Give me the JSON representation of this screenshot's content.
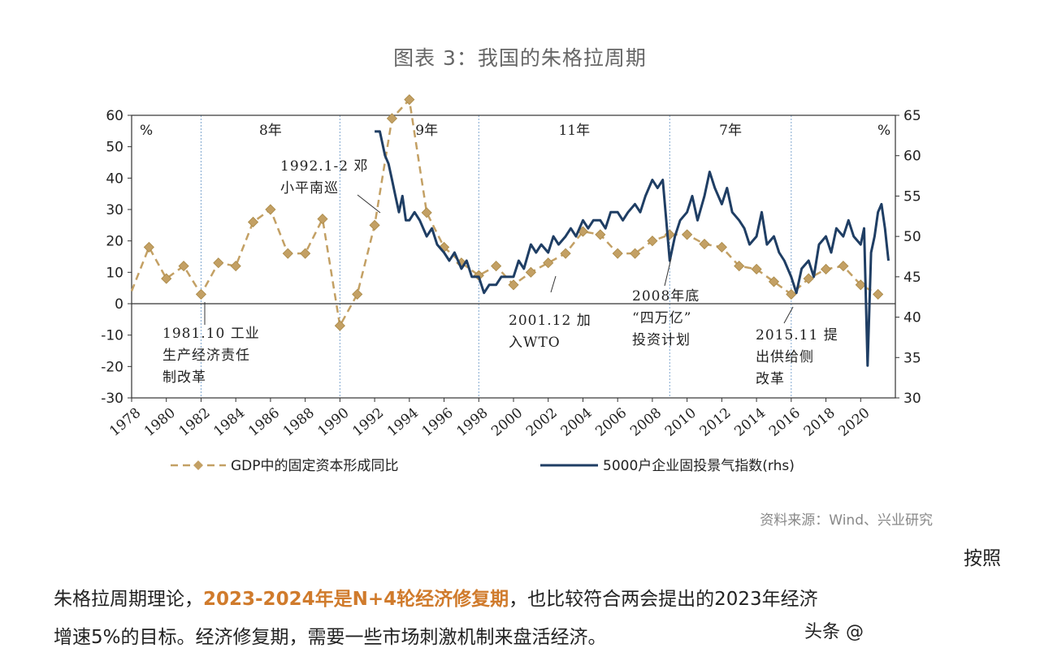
{
  "chart_data": {
    "type": "line",
    "title": "图表 3：我国的朱格拉周期",
    "source": "资料来源：Wind、兴业研究",
    "left_axis": {
      "unit": "%",
      "ylim": [
        -30,
        60
      ],
      "ticks": [
        60,
        50,
        40,
        30,
        20,
        10,
        0,
        -10,
        -20,
        -30
      ]
    },
    "right_axis": {
      "unit": "%",
      "ylim": [
        30,
        65
      ],
      "ticks": [
        65,
        60,
        55,
        50,
        45,
        40,
        35,
        30
      ]
    },
    "x_ticks": [
      "1978",
      "1980",
      "1982",
      "1984",
      "1986",
      "1988",
      "1990",
      "1992",
      "1994",
      "1996",
      "1998",
      "2000",
      "2002",
      "2004",
      "2006",
      "2008",
      "2010",
      "2012",
      "2014",
      "2016",
      "2018",
      "2020"
    ],
    "periods": [
      "8年",
      "9年",
      "11年",
      "7年"
    ],
    "annotations": {
      "a1992": [
        "1992.1-2 邓",
        "小平南巡"
      ],
      "a1981": [
        "1981.10 工业",
        "生产经济责任",
        "制改革"
      ],
      "a2001": [
        "2001.12 加",
        "入WTO"
      ],
      "a2008": [
        "2008年底",
        "“四万亿”",
        "投资计划"
      ],
      "a2015": [
        "2015.11 提",
        "出供给侧",
        "改革"
      ]
    },
    "series": [
      {
        "name": "GDP中的固定资本形成同比",
        "axis": "left",
        "color": "#c3a064",
        "x": [
          1978,
          1979,
          1980,
          1981,
          1982,
          1983,
          1984,
          1985,
          1986,
          1987,
          1988,
          1989,
          1990,
          1991,
          1992,
          1993,
          1994,
          1995,
          1996,
          1997,
          1998,
          1999,
          2000,
          2001,
          2002,
          2003,
          2004,
          2005,
          2006,
          2007,
          2008,
          2009,
          2010,
          2011,
          2012,
          2013,
          2014,
          2015,
          2016,
          2017,
          2018,
          2019,
          2020,
          2021
        ],
        "values": [
          4,
          18,
          8,
          12,
          3,
          13,
          12,
          26,
          30,
          16,
          16,
          27,
          -7,
          3,
          25,
          59,
          65,
          29,
          18,
          13,
          9,
          12,
          6,
          10,
          13,
          16,
          23,
          22,
          16,
          16,
          20,
          22,
          22,
          19,
          18,
          12,
          11,
          7,
          3,
          8,
          11,
          12,
          6,
          3
        ]
      },
      {
        "name": "5000户企业固投景气指数(rhs)",
        "axis": "right",
        "color": "#1f3e64",
        "x": [
          1992.0,
          1992.3,
          1992.6,
          1992.8,
          1993.0,
          1993.2,
          1993.4,
          1993.6,
          1993.8,
          1994.0,
          1994.3,
          1994.6,
          1995.0,
          1995.3,
          1995.6,
          1996.0,
          1996.3,
          1996.6,
          1997.0,
          1997.3,
          1997.6,
          1998.0,
          1998.3,
          1998.6,
          1999.0,
          1999.3,
          1999.6,
          2000.0,
          2000.3,
          2000.6,
          2001.0,
          2001.3,
          2001.6,
          2002.0,
          2002.3,
          2002.6,
          2003.0,
          2003.3,
          2003.6,
          2004.0,
          2004.3,
          2004.6,
          2005.0,
          2005.3,
          2005.6,
          2006.0,
          2006.3,
          2006.6,
          2007.0,
          2007.3,
          2007.6,
          2008.0,
          2008.3,
          2008.6,
          2009.0,
          2009.3,
          2009.6,
          2010.0,
          2010.3,
          2010.6,
          2011.0,
          2011.3,
          2011.6,
          2012.0,
          2012.3,
          2012.6,
          2013.0,
          2013.3,
          2013.6,
          2014.0,
          2014.3,
          2014.6,
          2015.0,
          2015.3,
          2015.6,
          2016.0,
          2016.3,
          2016.6,
          2017.0,
          2017.3,
          2017.6,
          2018.0,
          2018.3,
          2018.6,
          2019.0,
          2019.3,
          2019.6,
          2020.0,
          2020.2,
          2020.4,
          2020.6,
          2020.8,
          2021.0,
          2021.2,
          2021.4,
          2021.6
        ],
        "values": [
          63,
          63,
          60,
          59,
          57,
          55,
          53,
          55,
          52,
          52,
          53,
          52,
          50,
          51,
          49,
          48,
          47,
          48,
          46,
          47,
          45,
          45,
          43,
          44,
          44,
          45,
          45,
          45,
          47,
          46,
          49,
          48,
          49,
          48,
          50,
          49,
          50,
          51,
          50,
          52,
          51,
          52,
          52,
          51,
          53,
          53,
          52,
          53,
          54,
          53,
          55,
          57,
          56,
          57,
          47,
          50,
          52,
          53,
          55,
          52,
          55,
          58,
          56,
          54,
          56,
          53,
          52,
          51,
          49,
          50,
          53,
          49,
          50,
          48,
          47,
          45,
          43,
          46,
          47,
          45,
          49,
          50,
          48,
          51,
          50,
          52,
          50,
          49,
          51,
          34,
          48,
          50,
          53,
          54,
          51,
          47
        ]
      }
    ]
  },
  "paragraph": {
    "right_fragment": "按照",
    "line1_a": "朱格拉周期理论，",
    "line1_highlight": "2023-2024年是N+4轮经济修复期",
    "line1_b": "，也比较符合两会提出的2023年经济",
    "line2": "增速5%的目标。经济修复期，需要一些市场刺激机制来盘活经济。"
  },
  "watermark": "头条 @"
}
